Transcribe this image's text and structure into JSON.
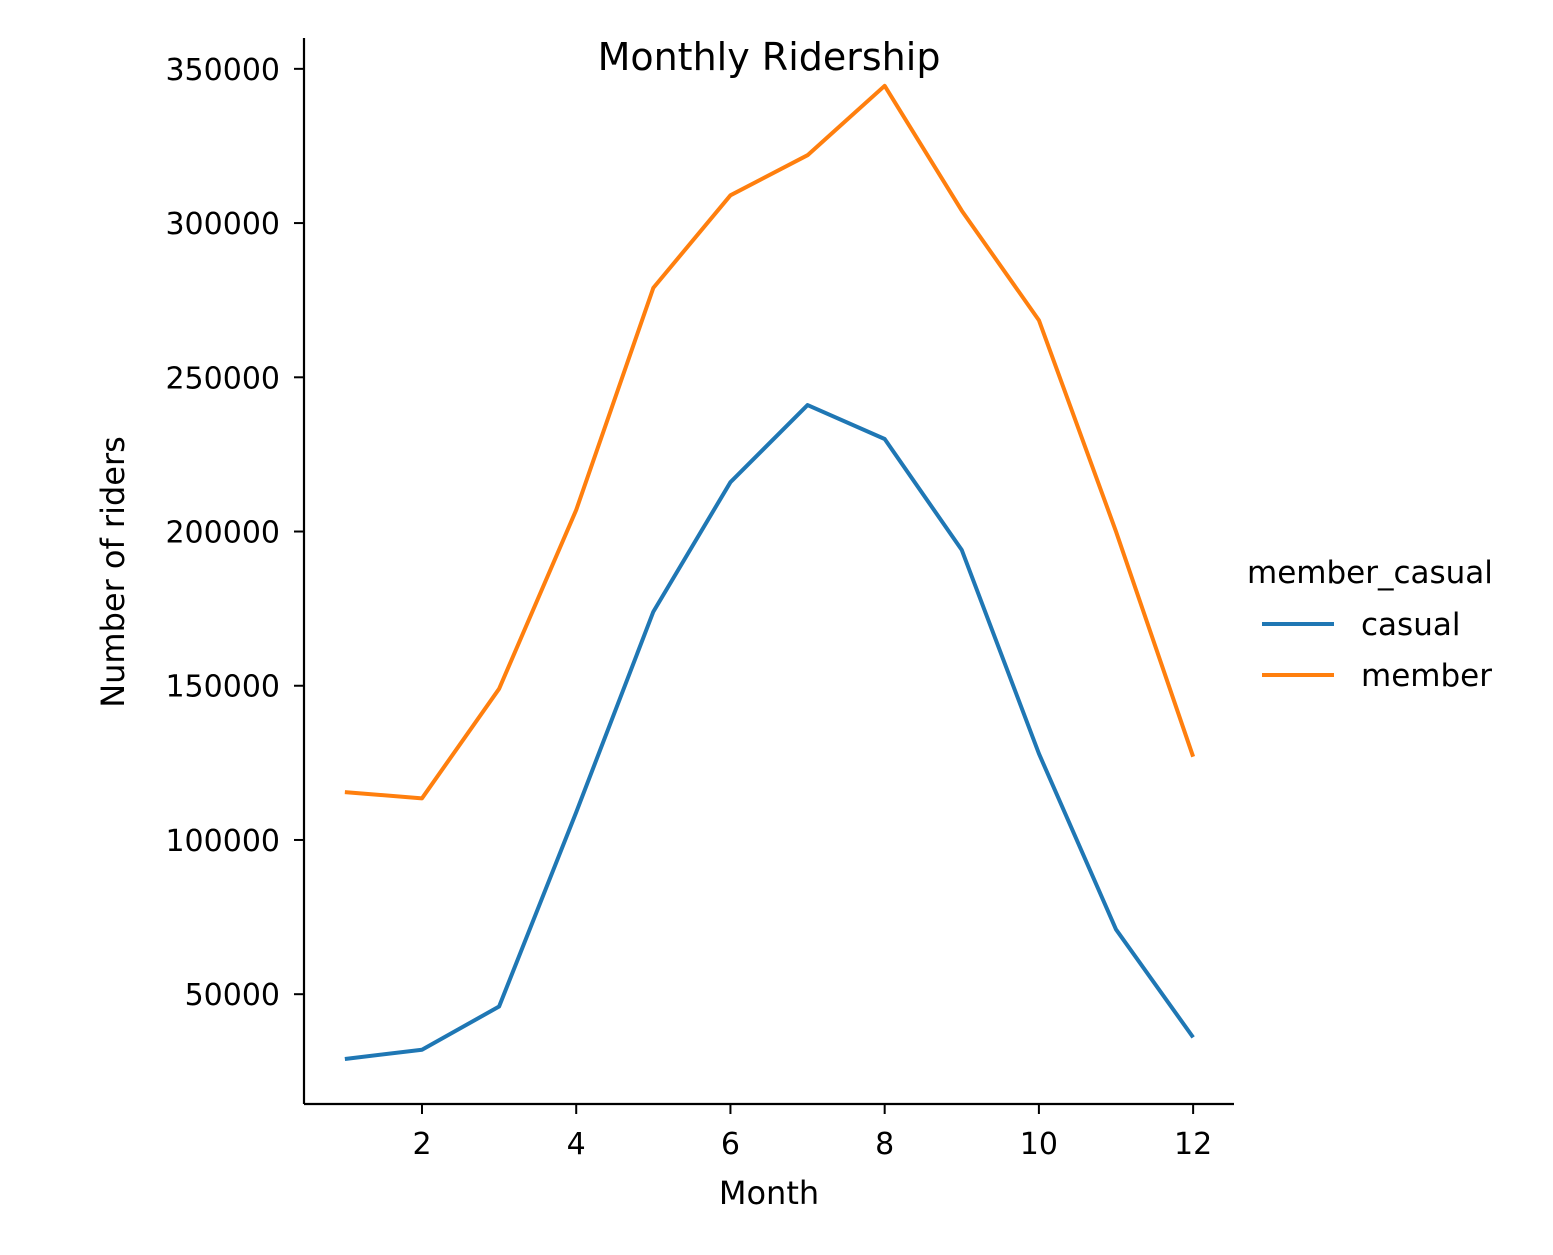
{
  "chart_data": {
    "type": "line",
    "title": "Monthly Ridership",
    "xlabel": "Month",
    "ylabel": "Number of riders",
    "x": [
      1,
      2,
      3,
      4,
      5,
      6,
      7,
      8,
      9,
      10,
      11,
      12
    ],
    "xticks": [
      2,
      4,
      6,
      8,
      10,
      12
    ],
    "yticks": [
      50000,
      100000,
      150000,
      200000,
      250000,
      300000,
      350000
    ],
    "xlim": [
      0.47,
      12.53
    ],
    "ylim": [
      14400,
      360000
    ],
    "grid": false,
    "legend": {
      "title": "member_casual",
      "placement": "right"
    },
    "series": [
      {
        "name": "casual",
        "color": "#1f77b4",
        "values": [
          29000,
          32000,
          46000,
          109000,
          174000,
          216000,
          241000,
          230000,
          194000,
          128000,
          71000,
          36000
        ]
      },
      {
        "name": "member",
        "color": "#ff7f0e",
        "values": [
          115500,
          113500,
          149000,
          207000,
          279000,
          309000,
          322000,
          344500,
          304000,
          268500,
          200000,
          127000
        ]
      }
    ]
  }
}
